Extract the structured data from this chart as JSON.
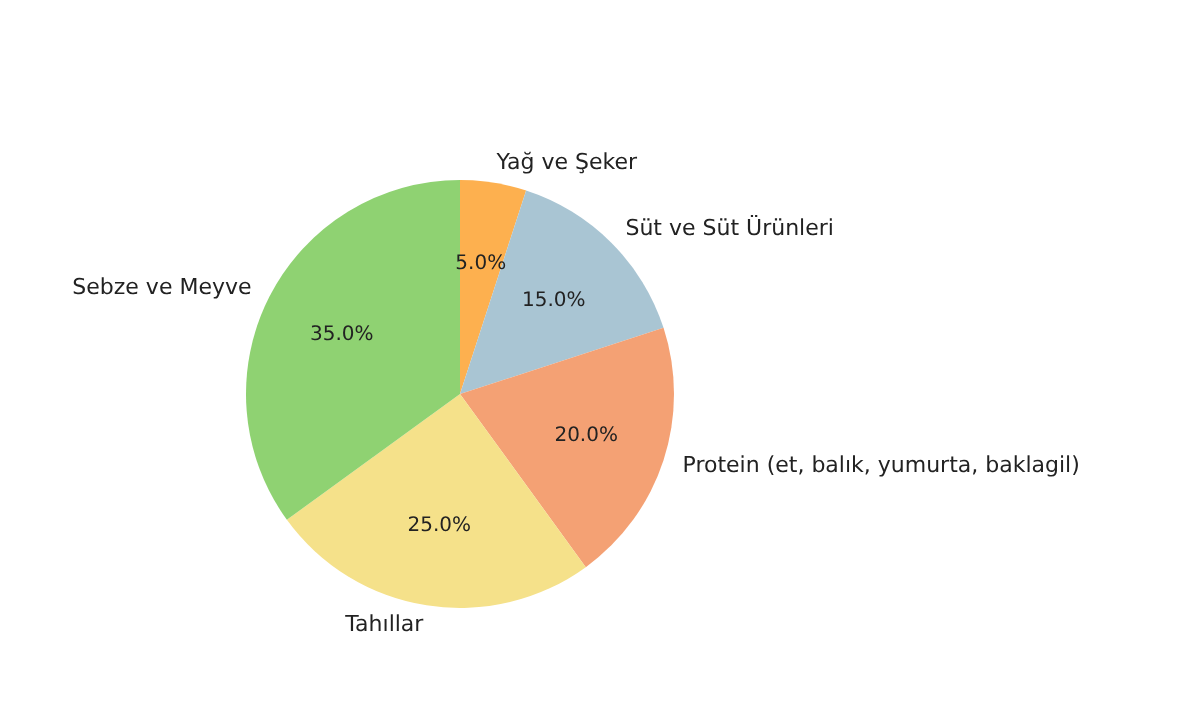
{
  "chart_data": {
    "type": "pie",
    "categories": [
      "Yağ ve Şeker",
      "Süt ve Süt Ürünleri",
      "Protein (et, balık, yumurta, baklagil)",
      "Tahıllar",
      "Sebze ve Meyve"
    ],
    "values": [
      5,
      15,
      20,
      25,
      35
    ],
    "colors": [
      "#fdb04f",
      "#a9c5d3",
      "#f4a174",
      "#f5e18a",
      "#8fd272"
    ],
    "value_labels": [
      "5.0%",
      "15.0%",
      "20.0%",
      "25.0%",
      "35.0%"
    ]
  }
}
